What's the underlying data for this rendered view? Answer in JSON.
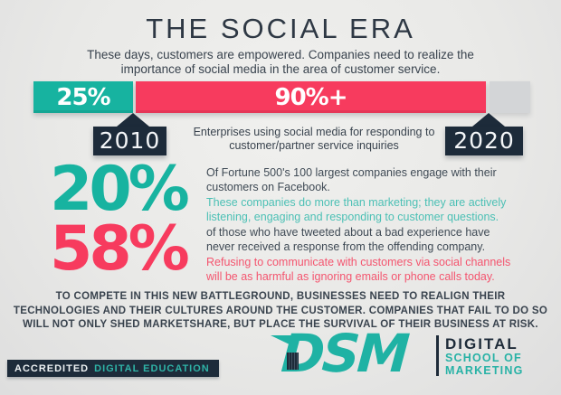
{
  "header": {
    "title": "THE SOCIAL ERA",
    "subtitle": "These days, customers are empowered. Companies need to realize the importance of social media in the area of customer service."
  },
  "timeline": {
    "caption": "Enterprises using social media for responding to customer/partner service inquiries",
    "start_year": "2010",
    "end_year": "2020",
    "segments": [
      {
        "label": "25%",
        "color": "#17b3a0"
      },
      {
        "label": "90%+",
        "color": "#f73b5e"
      },
      {
        "label": "",
        "color": "#d3d5d7"
      }
    ]
  },
  "stats": [
    {
      "value": "20%",
      "color": "#17b3a0",
      "text_primary": "Of Fortune 500's 100 largest companies engage with their customers on Facebook.",
      "text_secondary": "These companies do more than marketing; they are actively listening, engaging and responding to customer questions."
    },
    {
      "value": "58%",
      "color": "#f73b5e",
      "text_primary": "of those who have tweeted about a bad experience have never received a response from the offending company.",
      "text_secondary": "Refusing to communicate with customers via social channels will be as harmful as ignoring emails or phone calls today."
    }
  ],
  "conclusion": "TO COMPETE IN THIS NEW BATTLEGROUND, BUSINESSES NEED TO REALIGN THEIR TECHNOLOGIES AND THEIR CULTURES AROUND THE CUSTOMER. COMPANIES THAT FAIL TO DO SO WILL NOT ONLY SHED MARKETSHARE, BUT PLACE THE SURVIVAL OF THEIR BUSINESS AT RISK.",
  "footer": {
    "badge_accredited": "ACCREDITED",
    "badge_rest": "DIGITAL EDUCATION",
    "logo_acronym": "DSM",
    "logo_line1": "DIGITAL",
    "logo_line2": "SCHOOL OF",
    "logo_line3": "MARKETING"
  },
  "colors": {
    "teal": "#17b3a0",
    "teal_text": "#4cc0b5",
    "pink": "#f73b5e",
    "pink_text": "#f4556f",
    "navy": "#1d2b3a",
    "text_dark": "#39434e",
    "gray_segment": "#d3d5d7",
    "background": "#e9e9e7"
  },
  "chart_data": {
    "type": "bar",
    "categories": [
      "2010",
      "2020"
    ],
    "values": [
      25,
      90
    ],
    "value_labels": [
      "25%",
      "90%+"
    ],
    "unit": "%",
    "title": "Enterprises using social media for responding to customer/partner service inquiries",
    "layout": "horizontal timeline bar; teal 25% segment (2010), pink 90%+ segment (2020), gray open remainder; legend off; year callout boxes below bar",
    "additional_stats": [
      {
        "value": 20,
        "label": "20%"
      },
      {
        "value": 58,
        "label": "58%"
      }
    ]
  }
}
